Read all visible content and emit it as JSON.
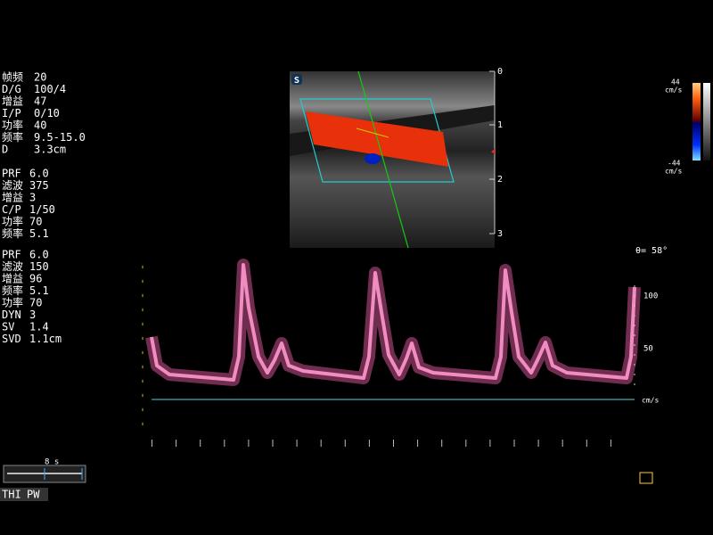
{
  "header": {
    "probe_icon": "S"
  },
  "params": {
    "groups": [
      {
        "rows": [
          {
            "label": "帧频",
            "value": "20"
          },
          {
            "label": "D/G",
            "value": "100/4"
          },
          {
            "label": "增益",
            "value": "47"
          },
          {
            "label": "I/P",
            "value": "0/10"
          },
          {
            "label": "功率",
            "value": "40"
          },
          {
            "label": "频率",
            "value": "9.5-15.0"
          },
          {
            "label": "D",
            "value": "3.3cm"
          }
        ]
      },
      {
        "rows": [
          {
            "label": "PRF",
            "value": "6.0"
          },
          {
            "label": "滤波",
            "value": "375"
          },
          {
            "label": "增益",
            "value": "3"
          },
          {
            "label": "C/P",
            "value": "1/50"
          },
          {
            "label": "功率",
            "value": "70"
          },
          {
            "label": "频率",
            "value": "5.1"
          }
        ]
      },
      {
        "rows": [
          {
            "label": "PRF",
            "value": "6.0"
          },
          {
            "label": "滤波",
            "value": "150"
          },
          {
            "label": "增益",
            "value": "96"
          },
          {
            "label": "频率",
            "value": "5.1"
          },
          {
            "label": "功率",
            "value": "70"
          },
          {
            "label": "DYN",
            "value": "3"
          },
          {
            "label": "SV",
            "value": "1.4"
          },
          {
            "label": "SVD",
            "value": "1.1cm"
          }
        ]
      }
    ]
  },
  "depth_scale": [
    "0",
    "1",
    "2",
    "3"
  ],
  "color_bar": {
    "top": "44",
    "top_unit": "cm/s",
    "bottom": "-44",
    "bottom_unit": "cm/s"
  },
  "angle": "θ= 58°",
  "doppler_scale": {
    "labels": [
      "100",
      "50"
    ],
    "unit": "cm/s"
  },
  "timeline": "8 s",
  "modes": [
    "THI",
    "PW"
  ]
}
